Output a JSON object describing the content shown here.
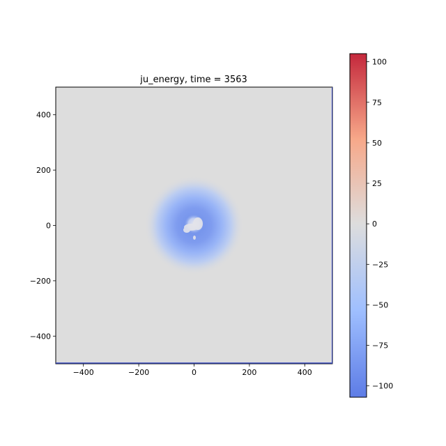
{
  "chart_data": {
    "type": "heatmap",
    "title": "ju_energy, time = 3563",
    "xlabel": "",
    "ylabel": "",
    "xlim": [
      -500,
      500
    ],
    "ylim": [
      -500,
      500
    ],
    "x_ticks": [
      -400,
      -200,
      0,
      200,
      400
    ],
    "y_ticks": [
      -400,
      -200,
      0,
      200,
      400
    ],
    "x_tick_labels": [
      "−400",
      "−200",
      "0",
      "200",
      "400"
    ],
    "y_tick_labels": [
      "−400",
      "−200",
      "0",
      "200",
      "400"
    ],
    "colormap": "coolwarm",
    "colorbar": {
      "range": [
        -107,
        105
      ],
      "ticks": [
        100,
        75,
        50,
        25,
        0,
        -25,
        -50,
        -75,
        -100
      ],
      "tick_labels": [
        "100",
        "75",
        "50",
        "25",
        "0",
        "−25",
        "−50",
        "−75",
        "−100"
      ],
      "stops": [
        "#5d7ce6",
        "#9fbfff",
        "#dddddd",
        "#f7a889",
        "#c4283c"
      ]
    },
    "background_value": 0,
    "background_color": "#dddddd",
    "features": [
      {
        "name": "negative-energy-blob",
        "center": [
          0,
          0
        ],
        "radius": 180,
        "min_value": -75
      },
      {
        "name": "central-light-patch",
        "center": [
          0,
          5
        ],
        "radius": 35,
        "value": -15
      }
    ],
    "grid": false
  }
}
